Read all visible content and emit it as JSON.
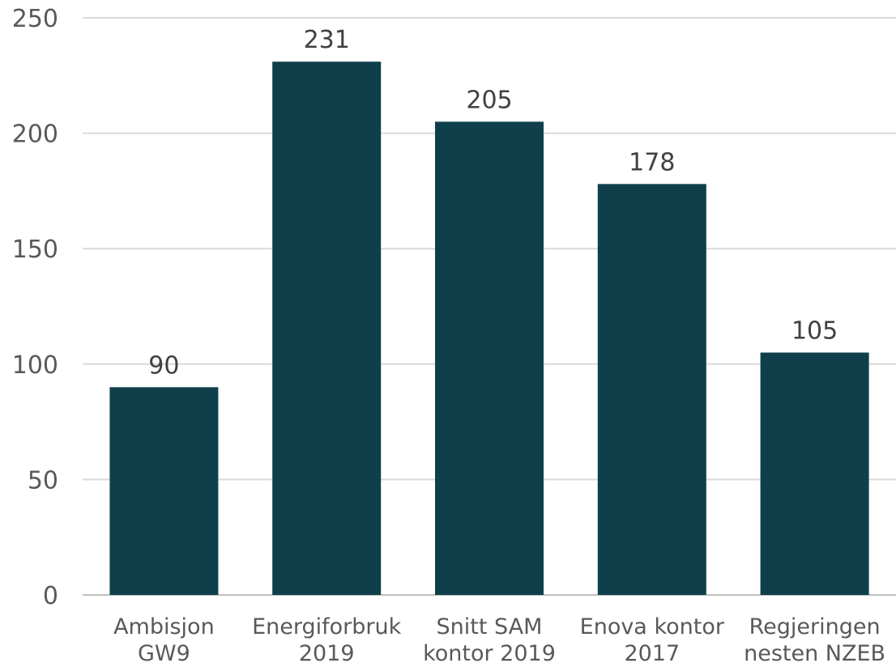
{
  "chart_data": {
    "type": "bar",
    "categories": [
      [
        "Ambisjon",
        "GW9"
      ],
      [
        "Energiforbruk",
        "2019"
      ],
      [
        "Snitt SAM",
        "kontor 2019"
      ],
      [
        "Enova kontor",
        "2017"
      ],
      [
        "Regjeringen",
        "nesten NZEB"
      ]
    ],
    "values": [
      90,
      231,
      205,
      178,
      105
    ],
    "data_labels": [
      "90",
      "231",
      "205",
      "178",
      "105"
    ],
    "yticks": [
      0,
      50,
      100,
      150,
      200,
      250
    ],
    "ylim": [
      0,
      250
    ],
    "grid": true,
    "legend": "none",
    "colors": {
      "bar": "#0f3f4b",
      "grid": "#d9d9d9",
      "axis": "#bfbfbf"
    }
  }
}
